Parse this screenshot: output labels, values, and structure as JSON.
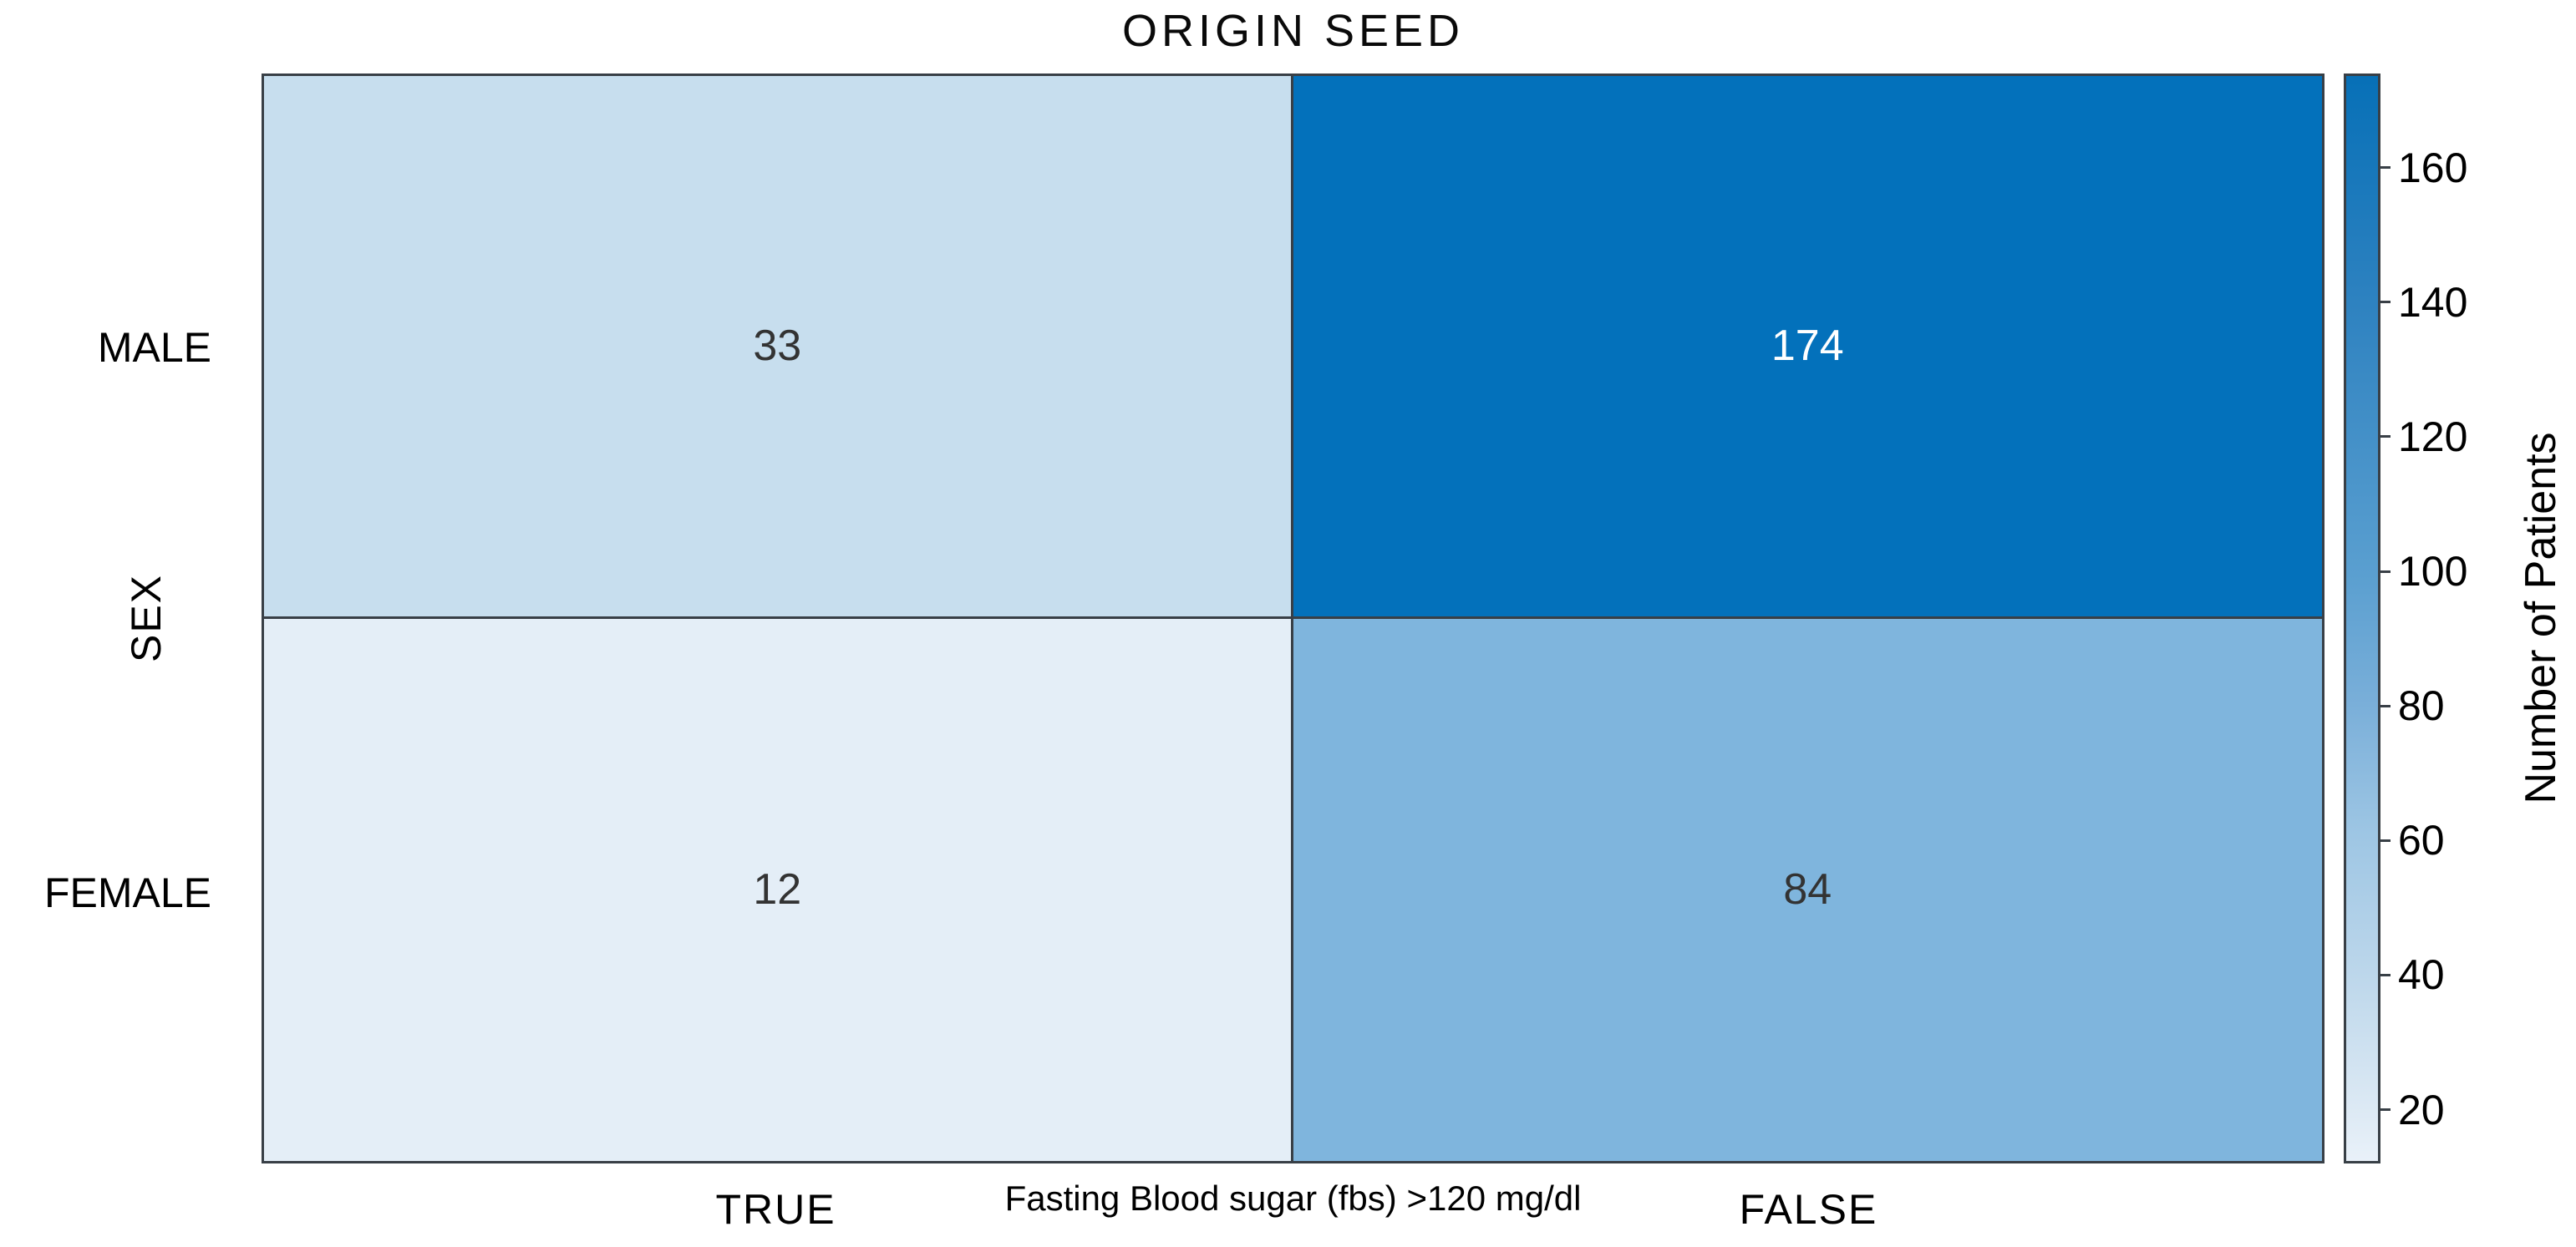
{
  "title": "ORIGIN SEED",
  "x_axis": {
    "label": "Fasting Blood sugar (fbs) >120 mg/dl",
    "categories": [
      "TRUE",
      "FALSE"
    ]
  },
  "y_axis": {
    "label": "SEX",
    "categories": [
      "MALE",
      "FEMALE"
    ]
  },
  "cells": [
    {
      "y": "MALE",
      "x": "TRUE",
      "value": 33,
      "bg": "#c7deee",
      "fg": "#333333"
    },
    {
      "y": "MALE",
      "x": "FALSE",
      "value": 174,
      "bg": "#0371bb",
      "fg": "#ffffff"
    },
    {
      "y": "FEMALE",
      "x": "TRUE",
      "value": 12,
      "bg": "#e4eef7",
      "fg": "#333333"
    },
    {
      "y": "FEMALE",
      "x": "FALSE",
      "value": 84,
      "bg": "#7fb5dd",
      "fg": "#333333"
    }
  ],
  "colorbar": {
    "label": "Number of Patients",
    "vmin": 12,
    "vmax": 174,
    "ticks": [
      160,
      140,
      120,
      100,
      80,
      60,
      40,
      20
    ],
    "border_color": "#383f46",
    "gradient": [
      [
        0.0,
        "#0770b7"
      ],
      [
        0.21,
        "#2e82c0"
      ],
      [
        0.46,
        "#5a9fd0"
      ],
      [
        0.58,
        "#7aafd9"
      ],
      [
        0.7,
        "#9ec6e4"
      ],
      [
        0.83,
        "#bdd7eb"
      ],
      [
        0.95,
        "#dce9f4"
      ],
      [
        1.0,
        "#e9f1f9"
      ]
    ]
  },
  "chart_data": {
    "type": "heatmap",
    "title": "ORIGIN SEED",
    "x_categories": [
      "TRUE",
      "FALSE"
    ],
    "y_categories": [
      "MALE",
      "FEMALE"
    ],
    "values": [
      [
        33,
        174
      ],
      [
        12,
        84
      ]
    ],
    "xlabel": "Fasting Blood sugar (fbs) >120 mg/dl",
    "ylabel": "SEX",
    "colorbar_label": "Number of Patients",
    "colorbar_ticks": [
      20,
      40,
      60,
      80,
      100,
      120,
      140,
      160
    ],
    "color_range": [
      12,
      174
    ],
    "colormap": "Blues",
    "legend_position": "right",
    "grid": false
  }
}
